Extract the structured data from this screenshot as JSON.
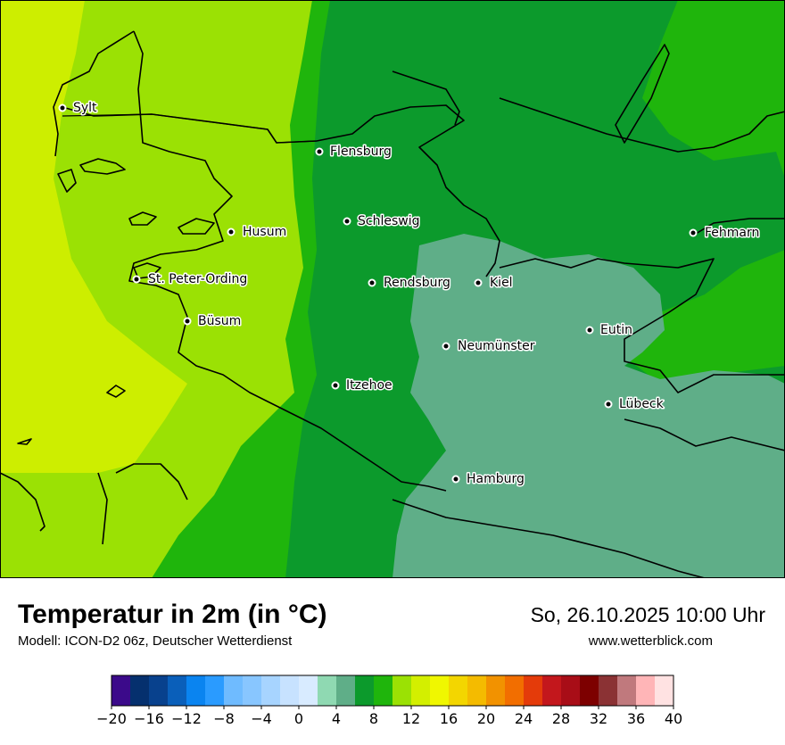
{
  "title": "Temperatur in 2m (in °C)",
  "model": "Modell: ICON-D2 06z, Deutscher Wetterdienst",
  "datetime": "So, 26.10.2025 10:00 Uhr",
  "website": "www.wetterblick.com",
  "cities": [
    {
      "name": "Sylt"
    },
    {
      "name": "Flensburg"
    },
    {
      "name": "Schleswig"
    },
    {
      "name": "Husum"
    },
    {
      "name": "St. Peter-Ording"
    },
    {
      "name": "Büsum"
    },
    {
      "name": "Rendsburg"
    },
    {
      "name": "Kiel"
    },
    {
      "name": "Neumünster"
    },
    {
      "name": "Eutin"
    },
    {
      "name": "Itzehoe"
    },
    {
      "name": "Lübeck"
    },
    {
      "name": "Hamburg"
    },
    {
      "name": "Fehmarn"
    }
  ],
  "legend": {
    "colors": [
      "#3b0a8a",
      "#05306e",
      "#08418d",
      "#0a5fba",
      "#0a84f0",
      "#2a9bff",
      "#6fbbff",
      "#88c6ff",
      "#a7d4ff",
      "#c7e2ff",
      "#d8ebff",
      "#8fd9b2",
      "#5fae88",
      "#0c9a2c",
      "#1fb50c",
      "#9be104",
      "#d3ef00",
      "#f0f700",
      "#f3d600",
      "#f4bb00",
      "#f29200",
      "#f26e00",
      "#e43b0a",
      "#c3171c",
      "#a80d17",
      "#7d0000",
      "#8b3234",
      "#c0797d",
      "#ffb5b7",
      "#ffe2e2"
    ],
    "ticks": [
      "−20",
      "−16",
      "−12",
      "−8",
      "−4",
      "0",
      "4",
      "8",
      "12",
      "16",
      "20",
      "24",
      "28",
      "32",
      "36",
      "40"
    ]
  },
  "field_colors": {
    "c9_10": "#cdee00",
    "c10_11": "#9be104",
    "c11_12": "#1fb50c",
    "c12_13": "#0c9a2c",
    "c13_14": "#5fae88"
  }
}
